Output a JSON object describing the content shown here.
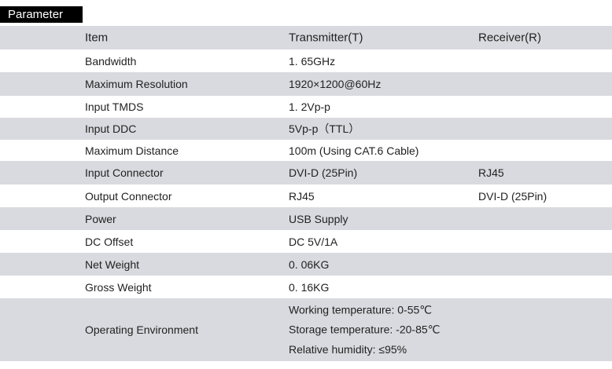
{
  "header": {
    "title": "Parameter"
  },
  "table": {
    "columns": [
      "Item",
      "Transmitter(T)",
      "Receiver(R)"
    ],
    "rows": [
      {
        "item": "Bandwidth",
        "transmitter": [
          "1. 65GHz"
        ]
      },
      {
        "item": "Maximum Resolution",
        "transmitter": [
          "1920×1200@60Hz"
        ]
      },
      {
        "item": "Input TMDS",
        "transmitter": [
          "1. 2Vp-p"
        ]
      },
      {
        "item": "Input DDC",
        "transmitter": [
          "5Vp-p（TTL）"
        ]
      },
      {
        "item": "Maximum Distance",
        "transmitter": [
          "100m (Using CAT.6 Cable)"
        ]
      },
      {
        "item": "Input Connector",
        "transmitter": [
          "DVI-D (25Pin)"
        ],
        "receiver": "RJ45"
      },
      {
        "item": "Output Connector",
        "transmitter": [
          "RJ45"
        ],
        "receiver": "DVI-D (25Pin)"
      },
      {
        "item": "Power",
        "transmitter": [
          "USB Supply"
        ]
      },
      {
        "item": "DC Offset",
        "transmitter": [
          "DC 5V/1A"
        ]
      },
      {
        "item": "Net Weight",
        "transmitter": [
          "0. 06KG"
        ]
      },
      {
        "item": "Gross Weight",
        "transmitter": [
          "0. 16KG"
        ]
      },
      {
        "item": "Operating Environment",
        "transmitter": [
          "Working temperature: 0-55℃",
          "Storage temperature: -20-85℃",
          "Relative humidity: ≤95%"
        ]
      }
    ]
  }
}
